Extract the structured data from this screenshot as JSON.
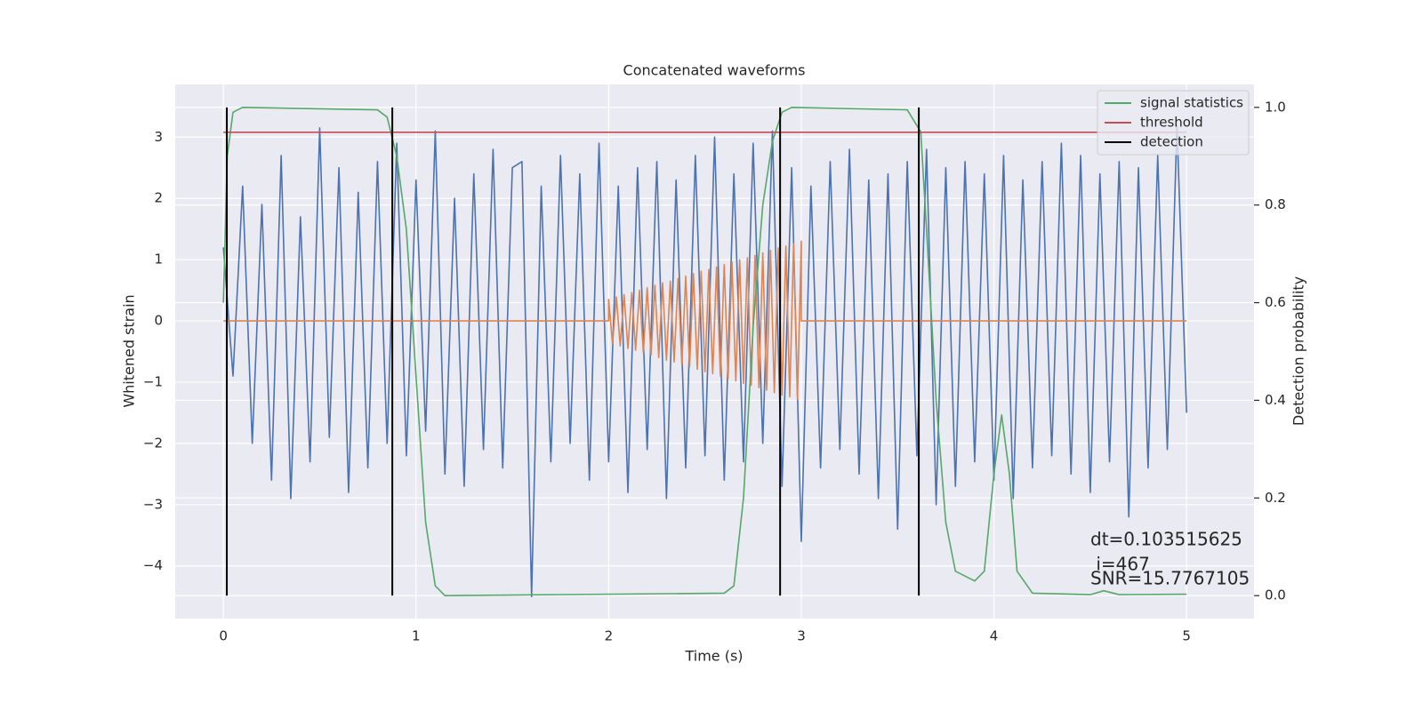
{
  "chart_data": {
    "type": "line",
    "title": "Concatenated waveforms",
    "xlabel": "Time (s)",
    "ylabel": "Whitened strain",
    "y2label": "Detection probability",
    "xlim": [
      -0.25,
      5.35
    ],
    "ylim": [
      -4.86,
      3.86
    ],
    "y2lim": [
      -0.047,
      1.047
    ],
    "xticks": [
      0,
      1,
      2,
      3,
      4,
      5
    ],
    "yticks": [
      {
        "value": -4,
        "label": "−4"
      },
      {
        "value": -3,
        "label": "−3"
      },
      {
        "value": -2,
        "label": "−2"
      },
      {
        "value": -1,
        "label": "−1"
      },
      0,
      1,
      2,
      3
    ],
    "y2ticks": [
      {
        "value": 0,
        "label": "0.0"
      },
      0.2,
      0.4,
      0.6,
      0.8,
      {
        "value": 1,
        "label": "1.0"
      }
    ],
    "grid": true,
    "legend": "upper right",
    "annotations": [
      "dt=0.103515625",
      " i=467",
      "SNR=15.7767105"
    ],
    "series": [
      {
        "color": "#4c72b0",
        "x": [
          0,
          0.05,
          0.1,
          0.15,
          0.2,
          0.25,
          0.3,
          0.35,
          0.4,
          0.45,
          0.5,
          0.55,
          0.6,
          0.65,
          0.7,
          0.75,
          0.8,
          0.85,
          0.9,
          0.95,
          1,
          1.05,
          1.1,
          1.15,
          1.2,
          1.25,
          1.3,
          1.35,
          1.4,
          1.45,
          1.5,
          1.55,
          1.6,
          1.65,
          1.7,
          1.75,
          1.8,
          1.85,
          1.9,
          1.95,
          2,
          2.05,
          2.1,
          2.15,
          2.2,
          2.25,
          2.3,
          2.35,
          2.4,
          2.45,
          2.5,
          2.55,
          2.6,
          2.65,
          2.7,
          2.75,
          2.8,
          2.85,
          2.9,
          2.95,
          3,
          3.05,
          3.1,
          3.15,
          3.2,
          3.25,
          3.3,
          3.35,
          3.4,
          3.45,
          3.5,
          3.55,
          3.6,
          3.65,
          3.7,
          3.75,
          3.8,
          3.85,
          3.9,
          3.95,
          4,
          4.05,
          4.1,
          4.15,
          4.2,
          4.25,
          4.3,
          4.35,
          4.4,
          4.45,
          4.5,
          4.55,
          4.6,
          4.65,
          4.7,
          4.75,
          4.8,
          4.85,
          4.9,
          4.95,
          5
        ],
        "values": [
          1.2,
          -0.9,
          2.2,
          -2.0,
          1.9,
          -2.6,
          2.7,
          -2.9,
          1.7,
          -2.3,
          3.15,
          -1.9,
          2.5,
          -2.8,
          2.1,
          -2.4,
          2.6,
          -2.0,
          2.9,
          -2.2,
          2.3,
          -1.8,
          3.1,
          -2.5,
          2.0,
          -2.7,
          2.4,
          -2.1,
          2.8,
          -2.4,
          2.5,
          2.6,
          -4.5,
          2.2,
          -2.3,
          2.7,
          -2.0,
          2.4,
          -2.6,
          2.9,
          -2.3,
          2.2,
          -2.8,
          2.5,
          -2.1,
          2.6,
          -2.9,
          2.3,
          -2.4,
          2.7,
          -2.2,
          3.0,
          -2.6,
          2.4,
          -2.3,
          2.9,
          -2.0,
          3.1,
          -2.7,
          2.5,
          -3.6,
          2.2,
          -2.4,
          2.6,
          -2.1,
          2.8,
          -2.5,
          2.3,
          -2.9,
          2.4,
          -3.4,
          2.6,
          -2.2,
          2.8,
          -3.0,
          2.5,
          -2.7,
          2.6,
          -2.3,
          2.4,
          -2.6,
          2.7,
          -2.9,
          2.3,
          -2.4,
          2.6,
          -2.2,
          2.9,
          -2.5,
          2.7,
          -2.8,
          2.4,
          -2.3,
          2.6,
          -3.2,
          2.5,
          -2.4,
          2.7,
          -2.1,
          3.2,
          -1.5
        ]
      },
      {
        "color": "#dd8452",
        "x": [
          0,
          2,
          2,
          2.02,
          2.04,
          2.06,
          2.08,
          2.1,
          2.12,
          2.14,
          2.16,
          2.18,
          2.2,
          2.22,
          2.24,
          2.26,
          2.28,
          2.3,
          2.32,
          2.34,
          2.36,
          2.38,
          2.4,
          2.42,
          2.44,
          2.46,
          2.48,
          2.5,
          2.52,
          2.54,
          2.56,
          2.58,
          2.6,
          2.62,
          2.64,
          2.66,
          2.68,
          2.7,
          2.72,
          2.74,
          2.76,
          2.78,
          2.8,
          2.82,
          2.84,
          2.86,
          2.88,
          2.9,
          2.92,
          2.94,
          2.96,
          2.98,
          3,
          3,
          5
        ],
        "values": [
          0,
          0,
          0.35,
          -0.37,
          0.39,
          -0.41,
          0.43,
          -0.45,
          0.46,
          -0.48,
          0.5,
          -0.52,
          0.54,
          -0.56,
          0.58,
          -0.6,
          0.62,
          -0.64,
          0.65,
          -0.67,
          0.69,
          -0.71,
          0.73,
          -0.75,
          0.77,
          -0.79,
          0.81,
          -0.83,
          0.84,
          -0.86,
          0.88,
          -0.9,
          0.92,
          -0.94,
          0.96,
          -0.98,
          1.0,
          -1.02,
          1.03,
          -1.05,
          1.07,
          -1.09,
          1.11,
          -1.13,
          1.15,
          -1.17,
          1.19,
          -1.21,
          1.22,
          -1.24,
          1.26,
          -1.28,
          1.3,
          0,
          0
        ]
      },
      {
        "name": "signal statistics",
        "color": "#55a868",
        "axis": "y2",
        "x": [
          0,
          0.02,
          0.05,
          0.1,
          0.8,
          0.85,
          0.9,
          0.95,
          1,
          1.05,
          1.1,
          1.15,
          2.6,
          2.65,
          2.7,
          2.75,
          2.8,
          2.85,
          2.9,
          2.95,
          3.55,
          3.62,
          3.65,
          3.7,
          3.75,
          3.8,
          3.9,
          3.95,
          4,
          4.04,
          4.08,
          4.12,
          4.2,
          4.5,
          4.57,
          4.65,
          5
        ],
        "values": [
          0.6,
          0.9,
          0.99,
          1.0,
          0.995,
          0.98,
          0.9,
          0.75,
          0.45,
          0.15,
          0.02,
          0.0,
          0.005,
          0.02,
          0.2,
          0.55,
          0.8,
          0.93,
          0.99,
          1.0,
          0.995,
          0.95,
          0.75,
          0.4,
          0.15,
          0.05,
          0.03,
          0.05,
          0.25,
          0.37,
          0.25,
          0.05,
          0.005,
          0.002,
          0.01,
          0.002,
          0.003
        ]
      },
      {
        "name": "threshold",
        "color": "#c44e52",
        "axis": "y2",
        "x": [
          0,
          5
        ],
        "values": [
          0.949,
          0.949
        ]
      },
      {
        "name": "detection",
        "color": "#000000",
        "axis": "y2",
        "type": "vlines",
        "x": [
          0.018,
          0.877,
          2.89,
          3.61
        ],
        "values": [
          1,
          1,
          1,
          1
        ]
      }
    ]
  }
}
